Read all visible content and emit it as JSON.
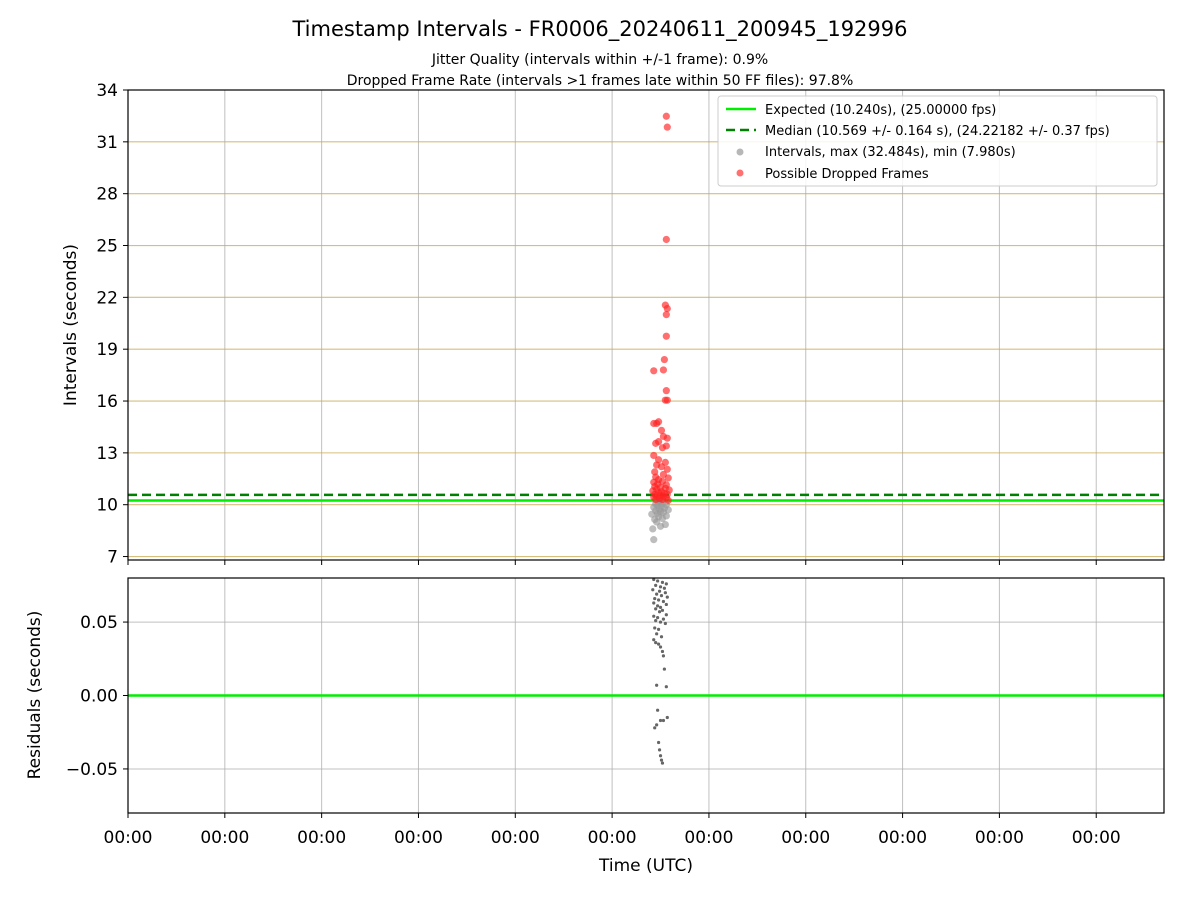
{
  "chart_data": [
    {
      "type": "scatter",
      "title": "Timestamp Intervals - FR0006_20240611_200945_192996",
      "subtitle_lines": [
        "Jitter Quality (intervals within +/-1 frame): 0.9%",
        "Dropped Frame Rate (intervals >1 frames late within 50 FF files): 97.8%"
      ],
      "xlabel": "",
      "ylabel": "Intervals (seconds)",
      "xlim": [
        -0.5,
        10.2
      ],
      "ylim": [
        6.8,
        34.0
      ],
      "yticks": [
        7,
        10,
        13,
        16,
        19,
        22,
        25,
        28,
        31,
        34
      ],
      "ytick_labels": [
        "7",
        "10",
        "13",
        "16",
        "19",
        "22",
        "25",
        "28",
        "31",
        "34"
      ],
      "grid": true,
      "legend_position": "top-right",
      "legend": [
        {
          "label": "Expected (10.240s), (25.00000 fps)",
          "kind": "line",
          "color": "#00ee00",
          "dash": ""
        },
        {
          "label": "Median (10.569 +/- 0.164 s), (24.22182 +/- 0.37 fps)",
          "kind": "line",
          "color": "#008000",
          "dash": "9,5"
        },
        {
          "label": "Intervals, max (32.484s), min (7.980s)",
          "kind": "marker",
          "color": "#999999"
        },
        {
          "label": "Possible Dropped Frames",
          "kind": "marker",
          "color": "#ff3333"
        }
      ],
      "expected_interval": 10.24,
      "median_interval": 10.569,
      "series": [
        {
          "role": "intervals",
          "color": "#999999",
          "points": [
            [
              4.93,
              7.98
            ],
            [
              4.92,
              8.6
            ],
            [
              5.0,
              8.75
            ],
            [
              5.05,
              8.85
            ],
            [
              4.96,
              9.0
            ],
            [
              4.94,
              9.15
            ],
            [
              5.02,
              9.2
            ],
            [
              4.98,
              9.3
            ],
            [
              5.06,
              9.35
            ],
            [
              4.91,
              9.45
            ],
            [
              4.97,
              9.5
            ],
            [
              5.03,
              9.55
            ],
            [
              5.0,
              9.6
            ],
            [
              4.95,
              9.65
            ],
            [
              5.08,
              9.7
            ],
            [
              4.99,
              9.75
            ],
            [
              5.04,
              9.8
            ],
            [
              4.93,
              9.85
            ],
            [
              5.01,
              9.9
            ],
            [
              4.97,
              9.95
            ],
            [
              5.06,
              10.0
            ],
            [
              4.95,
              10.05
            ],
            [
              5.02,
              10.1
            ],
            [
              4.98,
              10.15
            ],
            [
              5.0,
              10.2
            ]
          ]
        },
        {
          "role": "possible_dropped_frames",
          "color": "#ff2222",
          "points": [
            [
              5.06,
              32.48
            ],
            [
              5.07,
              31.85
            ],
            [
              5.06,
              25.35
            ],
            [
              5.05,
              21.55
            ],
            [
              5.07,
              21.35
            ],
            [
              5.06,
              21.0
            ],
            [
              5.06,
              19.75
            ],
            [
              5.04,
              18.4
            ],
            [
              5.03,
              17.8
            ],
            [
              4.93,
              17.75
            ],
            [
              5.06,
              16.6
            ],
            [
              5.05,
              16.05
            ],
            [
              5.07,
              16.05
            ],
            [
              4.93,
              14.7
            ],
            [
              4.98,
              14.8
            ],
            [
              4.96,
              14.7
            ],
            [
              5.01,
              14.3
            ],
            [
              5.03,
              13.95
            ],
            [
              5.07,
              13.85
            ],
            [
              4.98,
              13.65
            ],
            [
              4.95,
              13.55
            ],
            [
              5.06,
              13.4
            ],
            [
              5.02,
              13.3
            ],
            [
              4.93,
              12.85
            ],
            [
              4.98,
              12.6
            ],
            [
              5.05,
              12.45
            ],
            [
              4.96,
              12.3
            ],
            [
              5.07,
              12.05
            ],
            [
              4.94,
              11.9
            ],
            [
              5.01,
              12.2
            ],
            [
              4.95,
              11.6
            ],
            [
              5.03,
              11.75
            ],
            [
              4.98,
              11.45
            ],
            [
              5.08,
              11.55
            ],
            [
              4.93,
              11.3
            ],
            [
              5.02,
              11.35
            ],
            [
              4.97,
              11.2
            ],
            [
              5.06,
              11.15
            ],
            [
              4.94,
              11.05
            ],
            [
              5.0,
              11.0
            ],
            [
              5.05,
              10.95
            ],
            [
              4.96,
              10.9
            ],
            [
              5.09,
              10.85
            ],
            [
              4.92,
              10.8
            ],
            [
              5.01,
              10.75
            ],
            [
              4.98,
              10.7
            ],
            [
              5.04,
              10.65
            ],
            [
              4.94,
              10.6
            ],
            [
              5.07,
              10.6
            ],
            [
              5.0,
              10.55
            ],
            [
              4.96,
              10.5
            ],
            [
              5.03,
              10.5
            ],
            [
              4.93,
              10.45
            ],
            [
              5.06,
              10.4
            ],
            [
              4.99,
              10.35
            ],
            [
              5.02,
              10.3
            ],
            [
              4.95,
              10.3
            ],
            [
              5.08,
              10.25
            ]
          ]
        }
      ],
      "xtick_labels": [
        "00:00",
        "00:00",
        "00:00",
        "00:00",
        "00:00",
        "00:00",
        "00:00",
        "00:00",
        "00:00",
        "00:00",
        "00:00"
      ]
    },
    {
      "type": "scatter",
      "title": "",
      "xlabel": "Time (UTC)",
      "ylabel": "Residuals (seconds)",
      "xlim": [
        -0.5,
        10.2
      ],
      "ylim": [
        -0.08,
        0.08
      ],
      "yticks": [
        -0.05,
        0.0,
        0.05
      ],
      "ytick_labels": [
        "−0.05",
        "0.00",
        "0.05"
      ],
      "xticks": [
        -0.5,
        0.5,
        1.5,
        2.5,
        3.5,
        4.5,
        5.5,
        6.5,
        7.5,
        8.5,
        9.5
      ],
      "xtick_labels": [
        "00:00",
        "00:00",
        "00:00",
        "00:00",
        "00:00",
        "00:00",
        "00:00",
        "00:00",
        "00:00",
        "00:00",
        "00:00"
      ],
      "grid": true,
      "zero_line_color": "#00ee00",
      "series": [
        {
          "role": "residuals",
          "color": "#666666",
          "points": [
            [
              4.93,
              0.079
            ],
            [
              4.97,
              0.078
            ],
            [
              5.02,
              0.077
            ],
            [
              5.06,
              0.076
            ],
            [
              4.95,
              0.075
            ],
            [
              5.0,
              0.074
            ],
            [
              5.04,
              0.073
            ],
            [
              4.92,
              0.072
            ],
            [
              4.99,
              0.071
            ],
            [
              5.05,
              0.07
            ],
            [
              4.96,
              0.069
            ],
            [
              5.01,
              0.068
            ],
            [
              5.07,
              0.067
            ],
            [
              4.94,
              0.066
            ],
            [
              4.98,
              0.065
            ],
            [
              5.03,
              0.064
            ],
            [
              4.93,
              0.063
            ],
            [
              5.06,
              0.062
            ],
            [
              4.97,
              0.061
            ],
            [
              5.0,
              0.06
            ],
            [
              4.95,
              0.059
            ],
            [
              5.02,
              0.058
            ],
            [
              4.99,
              0.057
            ],
            [
              5.06,
              0.055
            ],
            [
              4.93,
              0.054
            ],
            [
              4.97,
              0.053
            ],
            [
              5.03,
              0.052
            ],
            [
              4.95,
              0.051
            ],
            [
              5.0,
              0.05
            ],
            [
              5.05,
              0.049
            ],
            [
              4.94,
              0.046
            ],
            [
              4.98,
              0.045
            ],
            [
              4.96,
              0.042
            ],
            [
              5.01,
              0.04
            ],
            [
              4.93,
              0.038
            ],
            [
              4.95,
              0.036
            ],
            [
              4.98,
              0.035
            ],
            [
              5.0,
              0.033
            ],
            [
              5.02,
              0.03
            ],
            [
              5.03,
              0.027
            ],
            [
              5.04,
              0.018
            ],
            [
              4.96,
              0.007
            ],
            [
              5.06,
              0.006
            ],
            [
              4.97,
              -0.01
            ],
            [
              5.07,
              -0.015
            ],
            [
              5.0,
              -0.017
            ],
            [
              5.03,
              -0.017
            ],
            [
              4.96,
              -0.02
            ],
            [
              4.94,
              -0.022
            ],
            [
              4.98,
              -0.032
            ],
            [
              4.99,
              -0.037
            ],
            [
              5.0,
              -0.041
            ],
            [
              5.01,
              -0.044
            ],
            [
              5.02,
              -0.046
            ]
          ]
        }
      ]
    }
  ]
}
